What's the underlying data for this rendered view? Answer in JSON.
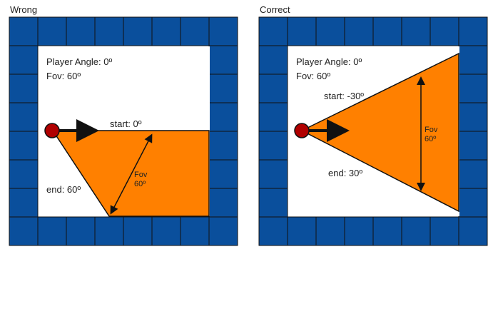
{
  "panels": [
    {
      "title": "Wrong",
      "player_angle": "Player Angle: 0º",
      "fov": "Fov: 60º",
      "start": "start: 0º",
      "end": "end: 60º",
      "fov_arrow_line1": "Fov",
      "fov_arrow_line2": "60º"
    },
    {
      "title": "Correct",
      "player_angle": "Player Angle: 0º",
      "fov": "Fov: 60º",
      "start": "start: -30º",
      "end": "end: 30º",
      "fov_arrow_line1": "Fov",
      "fov_arrow_line2": "60º"
    }
  ],
  "colors": {
    "wall": "#0a4f9c",
    "wall_border": "#111111",
    "fov_fill": "#ff8000",
    "player": "#b00000"
  }
}
